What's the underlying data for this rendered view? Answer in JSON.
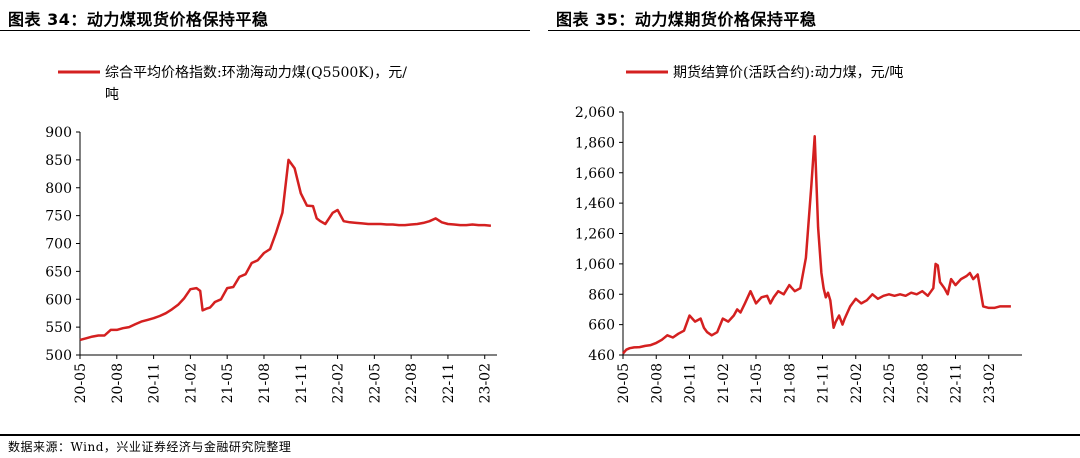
{
  "source_note": "数据来源：Wind，兴业证券经济与金融研究院整理",
  "colors": {
    "series": "#d42020",
    "axis": "#000000"
  },
  "chart_data": [
    {
      "type": "line",
      "title": "图表 34：动力煤现货价格保持平稳",
      "legend_line1": "综合平均价格指数:环渤海动力煤(Q5500K)，元/",
      "legend_line2": "吨",
      "ylim": [
        500,
        900
      ],
      "yticks": [
        "500",
        "550",
        "600",
        "650",
        "700",
        "750",
        "800",
        "850",
        "900"
      ],
      "ytick_values": [
        500,
        550,
        600,
        650,
        700,
        750,
        800,
        850,
        900
      ],
      "xticks": [
        "20-05",
        "20-08",
        "20-11",
        "21-02",
        "21-05",
        "21-08",
        "21-11",
        "22-02",
        "22-05",
        "22-08",
        "22-11",
        "23-02"
      ],
      "x_range": [
        0,
        34
      ],
      "x_unit": "months since 2020-05",
      "series": [
        {
          "x": [
            0,
            0.5,
            1,
            1.5,
            2,
            2.5,
            3,
            3.5,
            4,
            4.5,
            5,
            5.5,
            6,
            6.5,
            7,
            7.5,
            8,
            8.5,
            9,
            9.5,
            9.8,
            10,
            10.3,
            10.6,
            10.8,
            11,
            11.5,
            12,
            12.5,
            13,
            13.5,
            14,
            14.5,
            15,
            15.5,
            16,
            16.5,
            17,
            17.5,
            18,
            18.5,
            19,
            19.3,
            19.6,
            20,
            20.3,
            20.6,
            21,
            21.5,
            22,
            22.5,
            23,
            23.5,
            24,
            24.5,
            25,
            25.5,
            26,
            26.5,
            27,
            27.5,
            28,
            28.5,
            29,
            29.5,
            30,
            30.5,
            31,
            31.5,
            32,
            32.5,
            33,
            33.5
          ],
          "values": [
            527,
            530,
            533,
            535,
            535,
            545,
            545,
            548,
            550,
            555,
            560,
            563,
            566,
            570,
            575,
            582,
            590,
            602,
            618,
            620,
            615,
            580,
            583,
            585,
            590,
            595,
            600,
            620,
            622,
            640,
            645,
            665,
            670,
            683,
            690,
            720,
            755,
            850,
            835,
            790,
            768,
            767,
            745,
            740,
            735,
            745,
            755,
            760,
            740,
            738,
            737,
            736,
            735,
            735,
            735,
            734,
            734,
            733,
            733,
            734,
            735,
            737,
            740,
            745,
            738,
            735,
            734,
            733,
            733,
            734,
            733,
            733,
            732
          ]
        }
      ]
    },
    {
      "type": "line",
      "title": "图表 35：动力煤期货价格保持平稳",
      "legend_line1": "期货结算价(活跃合约):动力煤，元/吨",
      "ylim": [
        460,
        2060
      ],
      "yticks": [
        "460",
        "660",
        "860",
        "1,060",
        "1,260",
        "1,460",
        "1,660",
        "1,860",
        "2,060"
      ],
      "ytick_values": [
        460,
        660,
        860,
        1060,
        1260,
        1460,
        1660,
        1860,
        2060
      ],
      "xticks": [
        "20-05",
        "20-08",
        "20-11",
        "21-02",
        "21-05",
        "21-08",
        "21-11",
        "22-02",
        "22-05",
        "22-08",
        "22-11",
        "23-02"
      ],
      "x_range": [
        0,
        36
      ],
      "x_unit": "months since 2020-05",
      "series": [
        {
          "x": [
            0,
            0.3,
            0.6,
            1,
            1.5,
            2,
            2.5,
            3,
            3.5,
            4,
            4.5,
            5,
            5.5,
            6,
            6.5,
            7,
            7.3,
            7.6,
            8,
            8.5,
            9,
            9.5,
            10,
            10.3,
            10.6,
            11,
            11.5,
            12,
            12.5,
            13,
            13.3,
            13.6,
            14,
            14.5,
            15,
            15.5,
            16,
            16.5,
            17,
            17.3,
            17.6,
            17.9,
            18.1,
            18.3,
            18.5,
            18.7,
            19,
            19.2,
            19.5,
            19.8,
            20,
            20.5,
            21,
            21.5,
            22,
            22.5,
            23,
            23.5,
            24,
            24.5,
            25,
            25.5,
            26,
            26.5,
            27,
            27.5,
            28,
            28.2,
            28.4,
            28.6,
            29,
            29.3,
            29.6,
            30,
            30.5,
            31,
            31.3,
            31.6,
            32,
            32.5,
            33,
            33.5,
            34,
            34.5,
            35
          ],
          "values": [
            470,
            495,
            505,
            510,
            512,
            520,
            525,
            540,
            560,
            590,
            575,
            600,
            620,
            720,
            680,
            700,
            640,
            610,
            590,
            610,
            700,
            680,
            720,
            760,
            740,
            800,
            880,
            800,
            840,
            850,
            800,
            840,
            880,
            860,
            920,
            880,
            900,
            1100,
            1580,
            1900,
            1300,
            1000,
            900,
            840,
            870,
            820,
            640,
            680,
            720,
            660,
            700,
            780,
            830,
            800,
            820,
            860,
            830,
            850,
            860,
            850,
            860,
            850,
            870,
            860,
            880,
            850,
            900,
            1060,
            1050,
            940,
            900,
            860,
            960,
            920,
            960,
            980,
            1000,
            960,
            990,
            780,
            770,
            770,
            780,
            780,
            780
          ]
        }
      ]
    }
  ]
}
